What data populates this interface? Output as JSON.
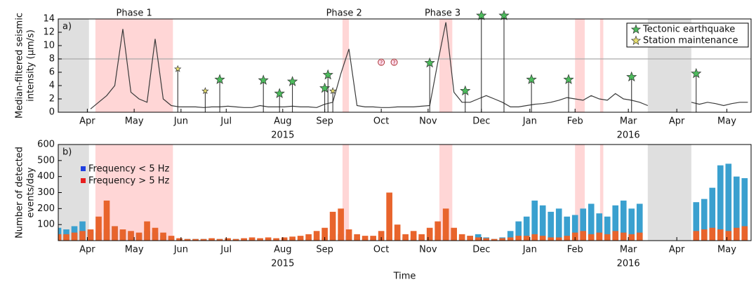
{
  "chart_data": [
    {
      "type": "line",
      "panel_label": "a)",
      "ylabel": [
        "Median-filtered seismic",
        "intensity (µm/s)"
      ],
      "xlim": [
        0,
        429
      ],
      "ylim": [
        0,
        14
      ],
      "yticks": [
        0,
        2,
        4,
        6,
        8,
        10,
        12,
        14
      ],
      "hline": 8,
      "xticks": [
        {
          "value": 18,
          "label": "Apr"
        },
        {
          "value": 47,
          "label": "May"
        },
        {
          "value": 76,
          "label": "Jun"
        },
        {
          "value": 104,
          "label": "Jul"
        },
        {
          "value": 139,
          "label": "Aug"
        },
        {
          "value": 165,
          "label": "Sep"
        },
        {
          "value": 200,
          "label": "Oct"
        },
        {
          "value": 229,
          "label": "Nov"
        },
        {
          "value": 262,
          "label": "Dec"
        },
        {
          "value": 292,
          "label": "Jan"
        },
        {
          "value": 320,
          "label": "Feb"
        },
        {
          "value": 353,
          "label": "Mar"
        },
        {
          "value": 383,
          "label": "Apr"
        },
        {
          "value": 414,
          "label": "May"
        }
      ],
      "year_labels": [
        {
          "text": "2015",
          "x": 139
        },
        {
          "text": "2016",
          "x": 353
        }
      ],
      "shading": [
        {
          "start": 0,
          "end": 19,
          "color": "#d9d9d9"
        },
        {
          "start": 23,
          "end": 71,
          "color": "#ffcfcf"
        },
        {
          "start": 176,
          "end": 180,
          "color": "#ffcfcf"
        },
        {
          "start": 236,
          "end": 244,
          "color": "#ffcfcf"
        },
        {
          "start": 320,
          "end": 326,
          "color": "#ffcfcf"
        },
        {
          "start": 335.5,
          "end": 337.5,
          "color": "#ffcfcf"
        },
        {
          "start": 365,
          "end": 392,
          "color": "#d9d9d9"
        }
      ],
      "phases": [
        {
          "text": "Phase 1",
          "x": 47
        },
        {
          "text": "Phase 2",
          "x": 177
        },
        {
          "text": "Phase 3",
          "x": 238
        }
      ],
      "series": [
        {
          "name": "Median-filtered seismic intensity",
          "color": "#3a3a3a",
          "x": [
            20,
            25,
            30,
            35,
            40,
            45,
            50,
            55,
            60,
            65,
            70,
            75,
            80,
            85,
            90,
            95,
            100,
            105,
            110,
            115,
            120,
            125,
            130,
            135,
            140,
            145,
            150,
            155,
            160,
            165,
            170,
            175,
            180,
            185,
            190,
            195,
            200,
            205,
            210,
            215,
            220,
            225,
            230,
            235,
            240,
            245,
            250,
            255,
            260,
            265,
            270,
            275,
            280,
            285,
            290,
            295,
            300,
            305,
            310,
            315,
            320,
            325,
            330,
            335,
            340,
            345,
            350,
            355,
            360,
            365,
            370,
            392,
            397,
            402,
            407,
            412,
            417,
            422,
            427
          ],
          "values": [
            0.5,
            1.5,
            2.5,
            4,
            12.5,
            3,
            2,
            1.5,
            11,
            2,
            1,
            0.8,
            0.8,
            0.8,
            0.7,
            0.8,
            0.8,
            0.9,
            0.8,
            0.7,
            0.7,
            1,
            0.8,
            0.8,
            0.8,
            0.9,
            0.8,
            0.8,
            0.7,
            1.2,
            1.5,
            5.8,
            9.5,
            1,
            0.8,
            0.8,
            0.7,
            0.7,
            0.8,
            0.8,
            0.8,
            0.9,
            1,
            7.5,
            13.5,
            3,
            1.5,
            1.5,
            2,
            2.5,
            2,
            1.5,
            0.8,
            0.8,
            1,
            1.2,
            1.3,
            1.5,
            1.8,
            2.2,
            2,
            1.8,
            2.5,
            2,
            1.8,
            2.8,
            2,
            1.8,
            1.5,
            1,
            null,
            1.5,
            1.2,
            1.5,
            1.3,
            1,
            1.3,
            1.5,
            1.5
          ]
        }
      ],
      "markers": [
        {
          "name": "Tectonic earthquake",
          "color": "#4cbb5c",
          "x": [
            100,
            127,
            137,
            145,
            165,
            167,
            230,
            252,
            262,
            276,
            293,
            316,
            355,
            395
          ],
          "values": [
            4.9,
            4.8,
            2.8,
            4.6,
            3.6,
            5.6,
            7.4,
            3.2,
            14.5,
            14.5,
            4.9,
            4.9,
            5.3,
            5.8
          ]
        },
        {
          "name": "Station maintenance",
          "color": "#e8e070",
          "x": [
            74,
            91,
            170
          ],
          "values": [
            6.5,
            3.2,
            3.2
          ]
        }
      ],
      "annotations": [
        {
          "text": "?",
          "x": 200,
          "y": 7.5
        },
        {
          "text": "?",
          "x": 208,
          "y": 7.5
        }
      ]
    },
    {
      "type": "bar",
      "panel_label": "b)",
      "xlabel": "Time",
      "ylabel": [
        "Number of detected",
        "events/day"
      ],
      "xlim": [
        0,
        429
      ],
      "ylim": [
        0,
        600
      ],
      "yticks": [
        100,
        200,
        300,
        400,
        500,
        600
      ],
      "xticks": [
        {
          "value": 18,
          "label": "Apr"
        },
        {
          "value": 47,
          "label": "May"
        },
        {
          "value": 76,
          "label": "Jun"
        },
        {
          "value": 104,
          "label": "Jul"
        },
        {
          "value": 139,
          "label": "Aug"
        },
        {
          "value": 165,
          "label": "Sep"
        },
        {
          "value": 200,
          "label": "Oct"
        },
        {
          "value": 229,
          "label": "Nov"
        },
        {
          "value": 262,
          "label": "Dec"
        },
        {
          "value": 292,
          "label": "Jan"
        },
        {
          "value": 320,
          "label": "Feb"
        },
        {
          "value": 353,
          "label": "Mar"
        },
        {
          "value": 383,
          "label": "Apr"
        },
        {
          "value": 414,
          "label": "May"
        }
      ],
      "year_labels": [
        {
          "text": "2015",
          "x": 139
        },
        {
          "text": "2016",
          "x": 353
        }
      ],
      "shading": [
        {
          "start": 0,
          "end": 19,
          "color": "#d9d9d9"
        },
        {
          "start": 23,
          "end": 71,
          "color": "#ffcfcf"
        },
        {
          "start": 176,
          "end": 180,
          "color": "#ffcfcf"
        },
        {
          "start": 236,
          "end": 244,
          "color": "#ffcfcf"
        },
        {
          "start": 320,
          "end": 326,
          "color": "#ffcfcf"
        },
        {
          "start": 335.5,
          "end": 337.5,
          "color": "#ffcfcf"
        },
        {
          "start": 365,
          "end": 392,
          "color": "#d9d9d9"
        }
      ],
      "x": [
        0,
        5,
        10,
        15,
        20,
        25,
        30,
        35,
        40,
        45,
        50,
        55,
        60,
        65,
        70,
        75,
        80,
        85,
        90,
        95,
        100,
        105,
        110,
        115,
        120,
        125,
        130,
        135,
        140,
        145,
        150,
        155,
        160,
        165,
        170,
        175,
        180,
        185,
        190,
        195,
        200,
        205,
        210,
        215,
        220,
        225,
        230,
        235,
        240,
        245,
        250,
        255,
        260,
        265,
        270,
        275,
        280,
        285,
        290,
        295,
        300,
        305,
        310,
        315,
        320,
        325,
        330,
        335,
        340,
        345,
        350,
        355,
        360,
        365,
        370,
        375,
        380,
        385,
        390,
        395,
        400,
        405,
        410,
        415,
        420,
        425
      ],
      "series": [
        {
          "name": "Frequency < 5 Hz",
          "color": "#3aa0cf",
          "legend_color": "#1f3fe0",
          "values": [
            80,
            70,
            90,
            120,
            60,
            50,
            70,
            90,
            60,
            50,
            40,
            60,
            50,
            30,
            20,
            10,
            10,
            10,
            10,
            10,
            10,
            10,
            10,
            10,
            10,
            10,
            10,
            10,
            10,
            10,
            10,
            10,
            10,
            20,
            30,
            40,
            30,
            20,
            10,
            10,
            20,
            20,
            20,
            20,
            20,
            20,
            20,
            30,
            30,
            20,
            20,
            30,
            40,
            20,
            10,
            20,
            60,
            120,
            150,
            250,
            220,
            180,
            200,
            150,
            160,
            200,
            230,
            170,
            150,
            220,
            250,
            200,
            230,
            null,
            null,
            null,
            null,
            null,
            null,
            240,
            260,
            330,
            470,
            480,
            400,
            390
          ]
        },
        {
          "name": "Frequency > 5 Hz",
          "color": "#e8642c",
          "legend_color": "#e81f1f",
          "values": [
            40,
            40,
            50,
            60,
            70,
            150,
            250,
            90,
            70,
            60,
            50,
            120,
            80,
            50,
            30,
            15,
            10,
            10,
            10,
            15,
            10,
            15,
            10,
            15,
            20,
            15,
            20,
            15,
            20,
            25,
            30,
            40,
            60,
            80,
            180,
            200,
            70,
            40,
            30,
            30,
            60,
            300,
            100,
            40,
            60,
            40,
            80,
            120,
            200,
            80,
            40,
            30,
            20,
            15,
            10,
            15,
            20,
            30,
            30,
            40,
            30,
            20,
            20,
            30,
            50,
            60,
            40,
            50,
            40,
            60,
            50,
            40,
            50,
            null,
            null,
            null,
            null,
            null,
            null,
            60,
            70,
            80,
            70,
            60,
            80,
            90
          ]
        }
      ]
    }
  ]
}
